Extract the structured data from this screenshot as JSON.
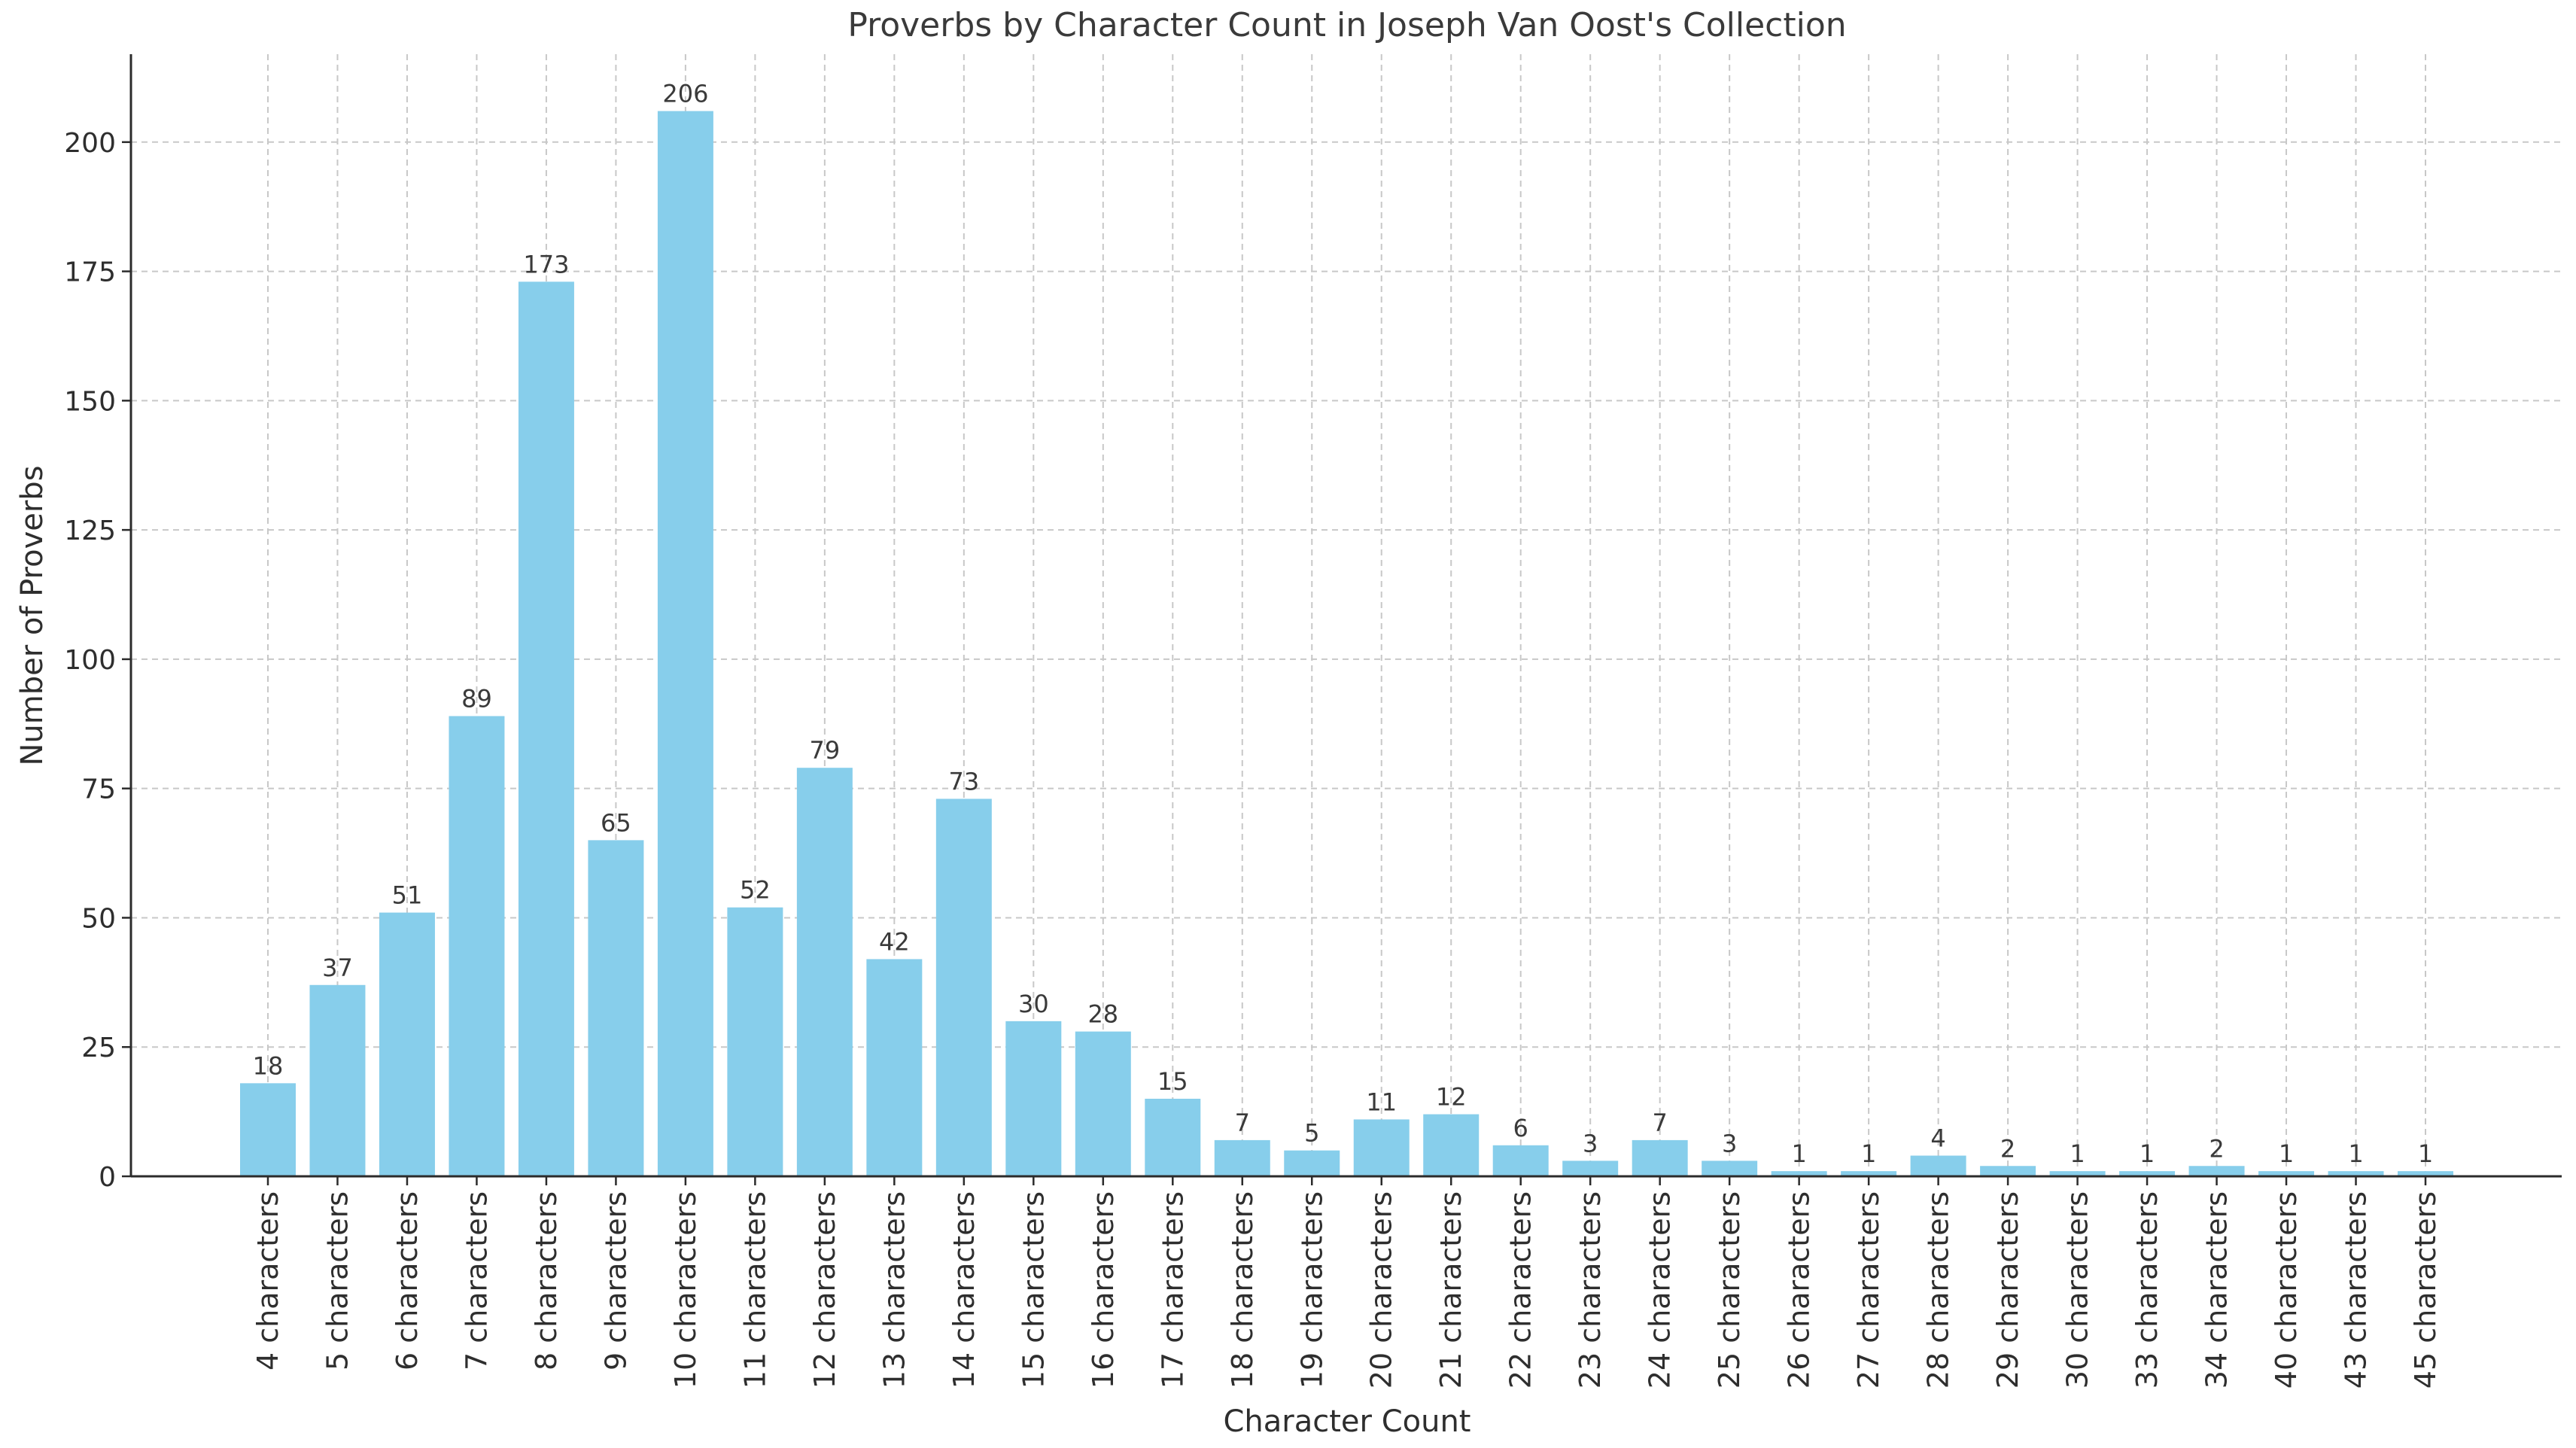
{
  "chart_data": {
    "type": "bar",
    "title": "Proverbs by Character Count in Joseph Van Oost's Collection",
    "xlabel": "Character Count",
    "ylabel": "Number of Proverbs",
    "categories": [
      "4 characters",
      "5 characters",
      "6 characters",
      "7 characters",
      "8 characters",
      "9 characters",
      "10 characters",
      "11 characters",
      "12 characters",
      "13 characters",
      "14 characters",
      "15 characters",
      "16 characters",
      "17 characters",
      "18 characters",
      "19 characters",
      "20 characters",
      "21 characters",
      "22 characters",
      "23 characters",
      "24 characters",
      "25 characters",
      "26 characters",
      "27 characters",
      "28 characters",
      "29 characters",
      "30 characters",
      "33 characters",
      "34 characters",
      "40 characters",
      "43 characters",
      "45 characters"
    ],
    "values": [
      18,
      37,
      51,
      89,
      173,
      65,
      206,
      52,
      79,
      42,
      73,
      30,
      28,
      15,
      7,
      5,
      11,
      12,
      6,
      3,
      7,
      3,
      1,
      1,
      4,
      2,
      1,
      1,
      2,
      1,
      1,
      1
    ],
    "ylim": [
      0,
      217
    ],
    "yticks": [
      0,
      25,
      50,
      75,
      100,
      125,
      150,
      175,
      200
    ],
    "grid": true,
    "bar_color": "#87ceeb"
  }
}
